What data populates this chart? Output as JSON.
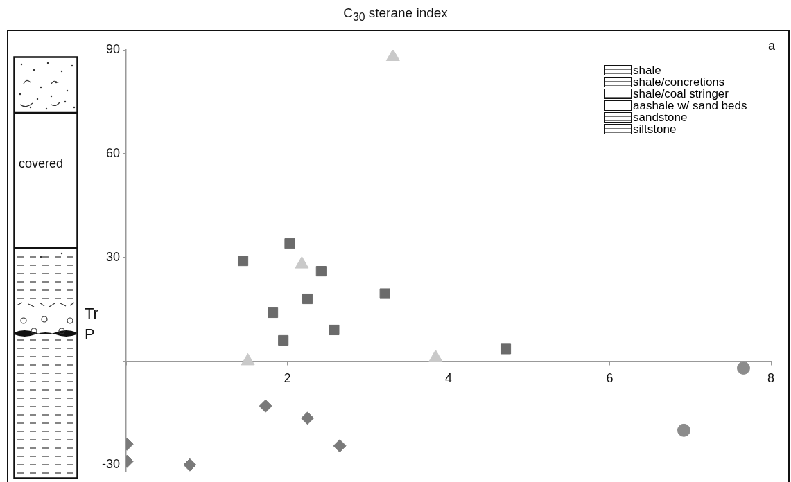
{
  "chart_data": {
    "type": "scatter",
    "title": "C$_{30}$ sterane index",
    "xlim": [
      0,
      8
    ],
    "xticks": [
      {
        "value": 0,
        "label": null
      },
      2,
      4,
      6,
      8
    ],
    "ylim": [
      -32,
      90
    ],
    "yticks": [
      -30,
      {
        "value": 0,
        "label": null
      },
      30,
      60,
      90
    ],
    "grid": false,
    "legend": false,
    "series": [
      {
        "color": "#6b6b6b",
        "marker": "square",
        "x": [
          1.45,
          2.03,
          2.42,
          2.25,
          1.82,
          3.21,
          2.58,
          1.95,
          4.71
        ],
        "values": [
          29,
          34,
          26,
          18,
          14,
          19.5,
          9,
          6,
          3.5
        ]
      },
      {
        "color": "#c9c9c9",
        "marker": "triangle",
        "x": [
          3.31,
          2.18,
          1.51,
          3.84
        ],
        "values": [
          88,
          28,
          0,
          1
        ]
      },
      {
        "color": "#7a7a7a",
        "marker": "diamond",
        "x": [
          1.73,
          2.25,
          2.65,
          0.01,
          0.01,
          0.79
        ],
        "values": [
          -13,
          -16.5,
          -24.5,
          -24,
          -29,
          -30
        ]
      },
      {
        "color": "#8c8c8c",
        "marker": "circle",
        "x": [
          7.66,
          6.92
        ],
        "values": [
          -2,
          -20
        ]
      }
    ],
    "annotations": [
      "a",
      "shale",
      "shale/concretions",
      "shale/coal stringer",
      "aashale w/ sand beds",
      "sandstone",
      "siltstone",
      "covered",
      "Tr",
      "P"
    ]
  }
}
